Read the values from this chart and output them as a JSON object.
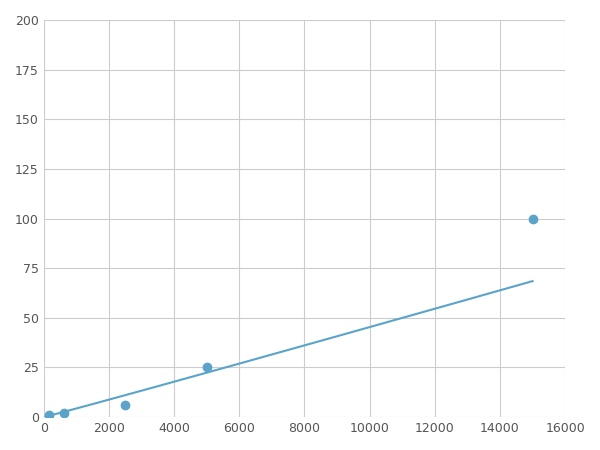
{
  "x": [
    156,
    625,
    2500,
    5000,
    15000
  ],
  "y": [
    1,
    2,
    6,
    25,
    100
  ],
  "line_color": "#5BA3C9",
  "marker_color": "#5BA3C9",
  "marker_size": 6,
  "linewidth": 1.5,
  "xlim": [
    0,
    16000
  ],
  "ylim": [
    0,
    200
  ],
  "xticks": [
    0,
    2000,
    4000,
    6000,
    8000,
    10000,
    12000,
    14000,
    16000
  ],
  "yticks": [
    0,
    25,
    50,
    75,
    100,
    125,
    150,
    175,
    200
  ],
  "grid_color": "#cccccc",
  "background_color": "#ffffff",
  "figsize": [
    6.0,
    4.5
  ],
  "dpi": 100
}
